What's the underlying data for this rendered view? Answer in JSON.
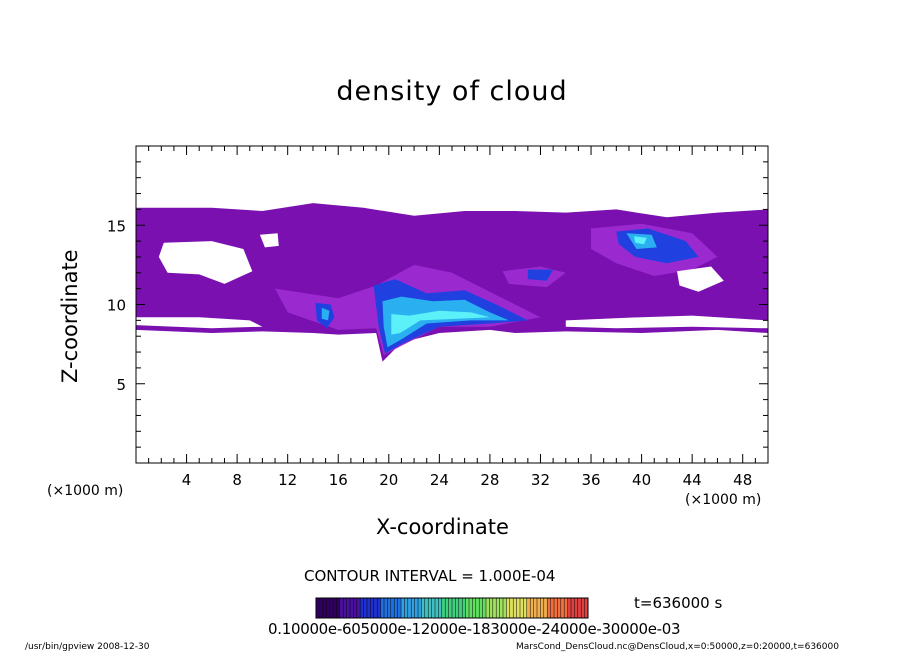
{
  "chart_data": {
    "type": "heatmap",
    "title": "density of cloud",
    "xlabel": "X-coordinate",
    "ylabel": "Z-coordinate",
    "x_unit_left": "(×1000 m)",
    "x_unit_right": "(×1000 m)",
    "xlim": [
      0,
      50
    ],
    "ylim": [
      0,
      20
    ],
    "x_ticks": [
      4,
      8,
      12,
      16,
      20,
      24,
      28,
      32,
      36,
      40,
      44,
      48
    ],
    "y_ticks": [
      5,
      10,
      15
    ],
    "contour_interval": "CONTOUR INTERVAL = 1.000E-04",
    "time": "t=636000 s",
    "colorbar_tick_text": "0.10000e-605000e-12000e-183000e-24000e-30000e-03",
    "colors": {
      "low": "#7a10b0",
      "low2": "#9a2ad0",
      "mid": "#2040e0",
      "high": "#2ab0f0",
      "peak": "#5cf0f8"
    },
    "regions": [
      {
        "level": "low",
        "points": [
          [
            0,
            16.1
          ],
          [
            6,
            16.1
          ],
          [
            10,
            15.9
          ],
          [
            14,
            16.4
          ],
          [
            18,
            16.1
          ],
          [
            22,
            15.6
          ],
          [
            26,
            15.9
          ],
          [
            30,
            15.9
          ],
          [
            34,
            15.8
          ],
          [
            38,
            16.0
          ],
          [
            42,
            15.5
          ],
          [
            46,
            15.8
          ],
          [
            50,
            16.0
          ],
          [
            50,
            8.2
          ],
          [
            46,
            8.4
          ],
          [
            40,
            8.2
          ],
          [
            34,
            8.3
          ],
          [
            30,
            8.2
          ],
          [
            28,
            8.4
          ],
          [
            24,
            8.2
          ],
          [
            21,
            7.6
          ],
          [
            19.5,
            6.4
          ],
          [
            19,
            8.2
          ],
          [
            16,
            8.1
          ],
          [
            14,
            8.2
          ],
          [
            10,
            8.3
          ],
          [
            6,
            8.2
          ],
          [
            0,
            8.4
          ]
        ]
      },
      {
        "level": "low2",
        "points": [
          [
            11,
            11.0
          ],
          [
            16,
            10.4
          ],
          [
            19,
            11.2
          ],
          [
            22,
            12.5
          ],
          [
            25,
            12.0
          ],
          [
            29,
            10.4
          ],
          [
            32,
            9.2
          ],
          [
            28,
            8.6
          ],
          [
            24,
            8.6
          ],
          [
            21,
            7.4
          ],
          [
            19.6,
            6.8
          ],
          [
            19,
            8.5
          ],
          [
            16,
            8.4
          ],
          [
            12,
            9.5
          ]
        ]
      },
      {
        "level": "mid",
        "points": [
          [
            18.8,
            11.2
          ],
          [
            20.5,
            11.6
          ],
          [
            23,
            10.7
          ],
          [
            26,
            10.9
          ],
          [
            28.5,
            10.0
          ],
          [
            31,
            9.0
          ],
          [
            28,
            8.8
          ],
          [
            24,
            8.6
          ],
          [
            21,
            7.5
          ],
          [
            19.7,
            6.9
          ],
          [
            19.2,
            8.6
          ]
        ]
      },
      {
        "level": "high",
        "points": [
          [
            19.5,
            10.2
          ],
          [
            21,
            10.5
          ],
          [
            23.5,
            10.2
          ],
          [
            26,
            10.3
          ],
          [
            28,
            9.5
          ],
          [
            29.5,
            9.0
          ],
          [
            26.5,
            9.0
          ],
          [
            23,
            8.8
          ],
          [
            21,
            7.8
          ],
          [
            19.9,
            7.3
          ],
          [
            19.6,
            8.6
          ]
        ]
      },
      {
        "level": "peak",
        "points": [
          [
            20.2,
            9.4
          ],
          [
            21.6,
            9.3
          ],
          [
            24,
            9.6
          ],
          [
            26.5,
            9.5
          ],
          [
            28,
            9.2
          ],
          [
            25.5,
            9.1
          ],
          [
            22.5,
            9.0
          ],
          [
            20.9,
            8.2
          ],
          [
            20.2,
            8.1
          ]
        ]
      },
      {
        "level": "mid",
        "points": [
          [
            14.2,
            10.1
          ],
          [
            15.4,
            10.0
          ],
          [
            15.7,
            9.2
          ],
          [
            15.1,
            8.5
          ],
          [
            14.3,
            9.0
          ]
        ]
      },
      {
        "level": "high",
        "points": [
          [
            14.7,
            9.8
          ],
          [
            15.3,
            9.6
          ],
          [
            15.2,
            9.0
          ],
          [
            14.7,
            9.1
          ]
        ]
      },
      {
        "level": "low2",
        "points": [
          [
            29,
            12.1
          ],
          [
            32,
            12.4
          ],
          [
            34,
            12.0
          ],
          [
            32.5,
            11.1
          ],
          [
            29.5,
            11.3
          ]
        ]
      },
      {
        "level": "mid",
        "points": [
          [
            31,
            12.2
          ],
          [
            33,
            12.2
          ],
          [
            32.5,
            11.5
          ],
          [
            31,
            11.6
          ]
        ]
      },
      {
        "level": "low2",
        "points": [
          [
            36,
            14.8
          ],
          [
            40,
            15.1
          ],
          [
            44,
            14.5
          ],
          [
            46,
            13.0
          ],
          [
            44,
            12.2
          ],
          [
            41,
            11.8
          ],
          [
            38,
            12.6
          ],
          [
            36,
            13.5
          ]
        ]
      },
      {
        "level": "mid",
        "points": [
          [
            38,
            14.6
          ],
          [
            40.5,
            14.8
          ],
          [
            43.5,
            14.0
          ],
          [
            44.5,
            13.0
          ],
          [
            42,
            12.6
          ],
          [
            39.5,
            13.0
          ],
          [
            38.2,
            13.8
          ]
        ]
      },
      {
        "level": "high",
        "points": [
          [
            38.8,
            14.5
          ],
          [
            40.8,
            14.4
          ],
          [
            41.2,
            13.6
          ],
          [
            39.6,
            13.5
          ]
        ]
      },
      {
        "level": "peak",
        "points": [
          [
            39.4,
            14.3
          ],
          [
            40.4,
            14.2
          ],
          [
            40.2,
            13.8
          ],
          [
            39.5,
            13.9
          ]
        ]
      }
    ],
    "holes": [
      {
        "points": [
          [
            2.2,
            13.9
          ],
          [
            6,
            14.0
          ],
          [
            8.5,
            13.5
          ],
          [
            9.2,
            12.1
          ],
          [
            7,
            11.3
          ],
          [
            5,
            11.9
          ],
          [
            2.5,
            12.0
          ],
          [
            1.8,
            13.0
          ]
        ]
      },
      {
        "points": [
          [
            9.8,
            14.4
          ],
          [
            11.2,
            14.5
          ],
          [
            11.3,
            13.7
          ],
          [
            10.2,
            13.6
          ]
        ]
      },
      {
        "points": [
          [
            42.8,
            12.1
          ],
          [
            45.5,
            12.4
          ],
          [
            46.5,
            11.5
          ],
          [
            44.5,
            10.8
          ],
          [
            43,
            11.2
          ]
        ]
      },
      {
        "points": [
          [
            0,
            9.2
          ],
          [
            5,
            9.2
          ],
          [
            9,
            9.0
          ],
          [
            10,
            8.6
          ],
          [
            6,
            8.5
          ],
          [
            0,
            8.7
          ]
        ]
      },
      {
        "points": [
          [
            34,
            9.0
          ],
          [
            40,
            9.2
          ],
          [
            44,
            9.3
          ],
          [
            50,
            9.0
          ],
          [
            50,
            8.5
          ],
          [
            44,
            8.6
          ],
          [
            38,
            8.5
          ],
          [
            34,
            8.6
          ]
        ]
      }
    ]
  },
  "footer": {
    "left": "/usr/bin/gpview   2008-12-30",
    "right": "MarsCond_DensCloud.nc@DensCloud,x=0:50000,z=0:20000,t=636000"
  }
}
